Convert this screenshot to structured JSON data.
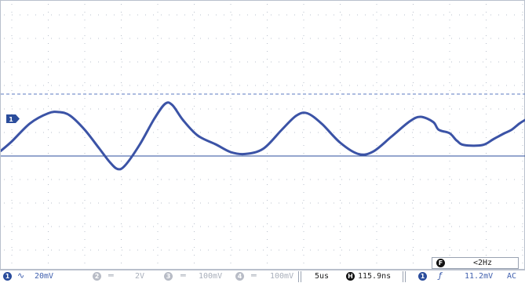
{
  "channel_marker": {
    "label": "1"
  },
  "status_bar": {
    "ch1": {
      "number": "1",
      "coupling_icon": "ac-wave-icon",
      "scale": "20mV"
    },
    "ch2": {
      "number": "2",
      "coupling_icon": "dc-lines-icon",
      "scale": "2V"
    },
    "ch3": {
      "number": "3",
      "coupling_icon": "dc-lines-icon",
      "scale": "100mV"
    },
    "ch4": {
      "number": "4",
      "coupling_icon": "dc-lines-icon",
      "scale": "100mV"
    },
    "timebase": "5us",
    "horizontal": {
      "badge": "H",
      "delay": "115.9ns"
    },
    "trigger": {
      "source": "1",
      "edge_icon": "rising-edge-icon",
      "level": "11.2mV",
      "coupling": "AC"
    }
  },
  "frequency_counter": {
    "badge": "F",
    "value": "<2Hz"
  },
  "colors": {
    "trace": "#3b53a6",
    "grid": "#b9c0cc",
    "accent": "#2b4d9c"
  },
  "waveform": {
    "description_x_units": "divisions",
    "points": [
      [
        0.0,
        0.55
      ],
      [
        0.3,
        0.95
      ],
      [
        0.8,
        1.72
      ],
      [
        1.3,
        2.15
      ],
      [
        1.6,
        2.2
      ],
      [
        1.9,
        2.05
      ],
      [
        2.3,
        1.45
      ],
      [
        2.7,
        0.65
      ],
      [
        3.0,
        0.05
      ],
      [
        3.2,
        -0.22
      ],
      [
        3.4,
        -0.08
      ],
      [
        3.8,
        0.8
      ],
      [
        4.2,
        1.9
      ],
      [
        4.5,
        2.55
      ],
      [
        4.7,
        2.5
      ],
      [
        5.0,
        1.85
      ],
      [
        5.4,
        1.2
      ],
      [
        5.9,
        0.82
      ],
      [
        6.3,
        0.5
      ],
      [
        6.7,
        0.42
      ],
      [
        7.2,
        0.65
      ],
      [
        7.7,
        1.45
      ],
      [
        8.1,
        2.05
      ],
      [
        8.4,
        2.15
      ],
      [
        8.8,
        1.7
      ],
      [
        9.3,
        0.9
      ],
      [
        9.8,
        0.42
      ],
      [
        10.2,
        0.52
      ],
      [
        10.7,
        1.15
      ],
      [
        11.2,
        1.8
      ],
      [
        11.5,
        2.0
      ],
      [
        11.85,
        1.78
      ],
      [
        12.0,
        1.45
      ],
      [
        12.3,
        1.3
      ],
      [
        12.5,
        0.98
      ],
      [
        12.7,
        0.8
      ],
      [
        13.2,
        0.8
      ],
      [
        13.5,
        1.05
      ],
      [
        13.8,
        1.3
      ],
      [
        14.0,
        1.45
      ],
      [
        14.2,
        1.7
      ],
      [
        14.35,
        1.85
      ],
      [
        14.4,
        1.88
      ]
    ],
    "reference_level_div": 2.7,
    "baseline_level_div": 0
  }
}
